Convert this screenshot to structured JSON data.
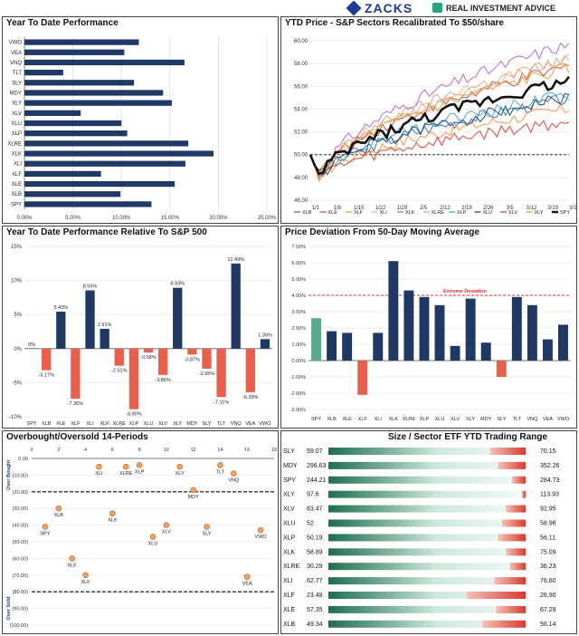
{
  "header": {
    "brand_zacks": "ZACKS",
    "brand_ria": "REAL INVESTMENT ADVICE"
  },
  "colors": {
    "navy": "#1f3864",
    "red": "#e8604c",
    "green": "#5aa88b",
    "orange": "#f0a060",
    "dashed_red": "#e03030"
  },
  "chart_data": [
    {
      "id": "ytd",
      "type": "bar",
      "orientation": "horizontal",
      "title": "Year To Date Performance",
      "categories": [
        "VWO",
        "VEA",
        "VNQ",
        "TLT",
        "SLY",
        "MDY",
        "XLY",
        "XLV",
        "XLU",
        "XLP",
        "XLRE",
        "XLK",
        "XLI",
        "XLF",
        "XLE",
        "XLB",
        "SPY"
      ],
      "values": [
        11.8,
        10.3,
        16.5,
        4.0,
        11.3,
        14.3,
        15.2,
        5.8,
        10.0,
        10.6,
        16.9,
        19.5,
        16.6,
        7.9,
        15.5,
        9.9,
        13.1
      ],
      "ticks": [
        "0.00%",
        "5.00%",
        "10.00%",
        "15.00%",
        "20.00%",
        "25.00%"
      ],
      "xlim": [
        0,
        25
      ]
    },
    {
      "id": "ytd_price",
      "type": "line",
      "title": "YTD Price - S&P Sectors Recalibrated To $50/share",
      "x_ticks": [
        "1/1",
        "1/8",
        "1/15",
        "1/22",
        "1/29",
        "2/5",
        "2/12",
        "2/19",
        "2/26",
        "3/5",
        "3/12",
        "3/19",
        "3/26"
      ],
      "y_ticks": [
        "60.00",
        "58.00",
        "56.00",
        "54.00",
        "52.00",
        "50.00",
        "48.00",
        "46.00"
      ],
      "ylim": [
        46,
        60
      ],
      "series": [
        {
          "name": "XLB",
          "color": "#4472c4",
          "end": 54.9
        },
        {
          "name": "XLE",
          "color": "#c0504d",
          "end": 57.7
        },
        {
          "name": "XLF",
          "color": "#f79646",
          "end": 54.0
        },
        {
          "name": "XLI",
          "color": "#f4b183",
          "end": 58.3
        },
        {
          "name": "XLK",
          "color": "#b26ac8",
          "end": 59.7
        },
        {
          "name": "XLRE",
          "color": "#d7a98c",
          "end": 58.4
        },
        {
          "name": "XLP",
          "color": "#4bacc6",
          "end": 55.3
        },
        {
          "name": "XLU",
          "color": "#1f4e79",
          "end": 55.0
        },
        {
          "name": "XLV",
          "color": "#d9453b",
          "end": 52.9
        },
        {
          "name": "XLY",
          "color": "#e6a03a",
          "end": 57.6
        },
        {
          "name": "SPY",
          "color": "#111111",
          "end": 56.5
        }
      ]
    },
    {
      "id": "rel",
      "type": "bar",
      "title": "Year To Date Performance Relative To S&P 500",
      "categories": [
        "SPY",
        "XLB",
        "XLE",
        "XLF",
        "XLI",
        "XLK",
        "XLRE",
        "XLP",
        "XLU",
        "XLV",
        "XLY",
        "MDY",
        "SLY",
        "TLT",
        "VNQ",
        "VEA",
        "VWO"
      ],
      "values": [
        0,
        -3.17,
        5.43,
        -7.36,
        8.55,
        2.91,
        -2.51,
        -8.9,
        -0.58,
        -3.86,
        8.93,
        -0.87,
        -2.95,
        -7.11,
        12.49,
        -6.39,
        1.39
      ],
      "labels": [
        "0%",
        "-3.17%",
        "5.43%",
        "-7.36%",
        "8.55%",
        "2.91%",
        "-2.51%",
        "-8.90%",
        "-0.58%",
        "-3.86%",
        "8.93%",
        "-0.87%",
        "-2.95%",
        "-7.11%",
        "12.49%",
        "-6.39%",
        "1.39%"
      ],
      "ticks": [
        "15%",
        "10%",
        "5%",
        "0%",
        "-5%",
        "-10%"
      ],
      "ylim": [
        -10,
        15
      ]
    },
    {
      "id": "dev",
      "type": "bar",
      "title": "Price Deviation From 50-Day Moving Average",
      "categories": [
        "SPY",
        "XLB",
        "XLE",
        "XLF",
        "XLI",
        "XLK",
        "XLRE",
        "XLP",
        "XLU",
        "XLV",
        "XLY",
        "MDY",
        "SLY",
        "TLT",
        "VNQ",
        "VEA",
        "VWO"
      ],
      "values": [
        2.6,
        1.8,
        1.7,
        -2.1,
        1.7,
        6.1,
        4.3,
        3.9,
        3.4,
        0.9,
        3.8,
        1.1,
        -1.0,
        3.9,
        3.4,
        1.3,
        2.2
      ],
      "ticks": [
        "7.00%",
        "6.00%",
        "5.00%",
        "4.00%",
        "3.00%",
        "2.00%",
        "1.00%",
        "0.00%",
        "-1.00%",
        "-2.00%",
        "-3.00%"
      ],
      "ylim": [
        -3,
        7
      ],
      "threshold": 4.0,
      "threshold_label": "Extreme Deviation"
    },
    {
      "id": "ob",
      "type": "scatter",
      "title": "Overbought/Oversold 14-Periods",
      "x_ticks": [
        "0",
        "2",
        "4",
        "6",
        "8",
        "10",
        "12",
        "14",
        "16",
        "18"
      ],
      "y_ticks": [
        "0.00",
        "(10.00)",
        "(20.00)",
        "(30.00)",
        "(40.00)",
        "(50.00)",
        "(60.00)",
        "(70.00)",
        "(80.00)",
        "(90.00)",
        "(100.00)"
      ],
      "xlim": [
        0,
        18
      ],
      "ylim": [
        -100,
        0
      ],
      "overbought_label": "Over Bought",
      "oversold_label": "Over Sold",
      "overbought_level": -20,
      "oversold_level": -80,
      "points": [
        {
          "name": "XLI",
          "x": 5,
          "y": -5
        },
        {
          "name": "XLRE",
          "x": 7,
          "y": -5
        },
        {
          "name": "XLP",
          "x": 8,
          "y": -4
        },
        {
          "name": "XLY",
          "x": 11,
          "y": -5
        },
        {
          "name": "TLT",
          "x": 14,
          "y": -4
        },
        {
          "name": "VNQ",
          "x": 15,
          "y": -9
        },
        {
          "name": "MDY",
          "x": 12,
          "y": -19
        },
        {
          "name": "XLB",
          "x": 2,
          "y": -30
        },
        {
          "name": "XLK",
          "x": 6,
          "y": -33
        },
        {
          "name": "SPY",
          "x": 1,
          "y": -41
        },
        {
          "name": "XLV",
          "x": 10,
          "y": -40
        },
        {
          "name": "SLY",
          "x": 13,
          "y": -41
        },
        {
          "name": "VWO",
          "x": 17,
          "y": -43
        },
        {
          "name": "XLU",
          "x": 9,
          "y": -47
        },
        {
          "name": "XLE",
          "x": 3,
          "y": -60
        },
        {
          "name": "XLF",
          "x": 4,
          "y": -70
        },
        {
          "name": "VEA",
          "x": 16,
          "y": -71
        }
      ]
    },
    {
      "id": "range",
      "type": "table",
      "title": "Size / Sector ETF YTD Trading Range",
      "rows": [
        {
          "ticker": "SLY",
          "low": "59.07",
          "high": "70.15",
          "pos": 0.82
        },
        {
          "ticker": "MDY",
          "low": "296.63",
          "high": "352.26",
          "pos": 0.86
        },
        {
          "ticker": "SPY",
          "low": "244.21",
          "high": "284.73",
          "pos": 0.93
        },
        {
          "ticker": "XLY",
          "low": "97.6",
          "high": "113.93",
          "pos": 0.98
        },
        {
          "ticker": "XLV",
          "low": "83.47",
          "high": "92.95",
          "pos": 0.9
        },
        {
          "ticker": "XLU",
          "low": "52",
          "high": "58.96",
          "pos": 0.88
        },
        {
          "ticker": "XLP",
          "low": "50.19",
          "high": "56.11",
          "pos": 0.86
        },
        {
          "ticker": "XLK",
          "low": "58.89",
          "high": "75.09",
          "pos": 0.9
        },
        {
          "ticker": "XLRE",
          "low": "30.29",
          "high": "36.23",
          "pos": 0.92
        },
        {
          "ticker": "XLI",
          "low": "62.77",
          "high": "76.60",
          "pos": 0.84
        },
        {
          "ticker": "XLF",
          "low": "23.48",
          "high": "26.90",
          "pos": 0.7
        },
        {
          "ticker": "XLE",
          "low": "57.35",
          "high": "67.29",
          "pos": 0.85
        },
        {
          "ticker": "XLB",
          "low": "49.34",
          "high": "56.14",
          "pos": 0.78
        }
      ]
    }
  ]
}
